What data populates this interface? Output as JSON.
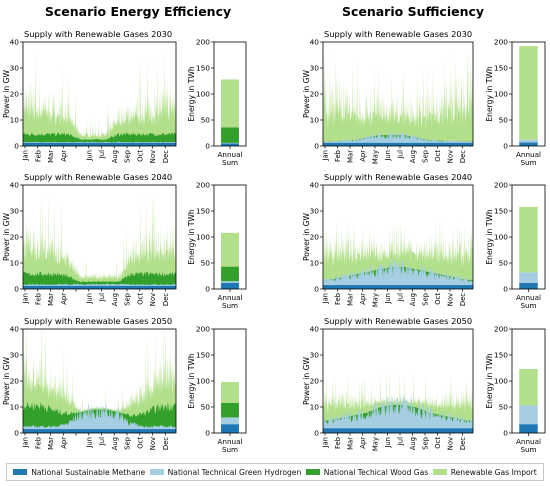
{
  "colors": {
    "methane": "#1f77b4",
    "hydrogen": "#a6cee3",
    "wood": "#33a02c",
    "import": "#b2df8a"
  },
  "scenarios": [
    {
      "title": "Scenario Energy Efficiency",
      "rows": [
        {
          "subtitle": "Supply with Renewable Gases 2030",
          "profile": {
            "methane": 1.2,
            "hydrogen": [
              0.3,
              0.3,
              0.3,
              0.3,
              0.3,
              0.3,
              0.3,
              0.3,
              0.3,
              0.3,
              0.3,
              0.3
            ],
            "wood": [
              3,
              3,
              3,
              3,
              1,
              1,
              1,
              3,
              3,
              3,
              3,
              3
            ],
            "import_mean": [
              17,
              16,
              14,
              12,
              3,
              3,
              3,
              10,
              12,
              14,
              15,
              18
            ],
            "import_peak": [
              31,
              32,
              28,
              26,
              10,
              9,
              10,
              25,
              27,
              29,
              30,
              33
            ]
          },
          "annual_twh": {
            "methane": 5,
            "hydrogen": 1,
            "wood": 30,
            "import": 92
          },
          "total_twh": 128
        },
        {
          "subtitle": "Supply with Renewable Gases 2040",
          "profile": {
            "methane": 1.2,
            "hydrogen": [
              0.5,
              0.5,
              0.5,
              0.6,
              0.6,
              0.6,
              0.6,
              0.6,
              0.5,
              0.5,
              0.5,
              0.5
            ],
            "wood": [
              4,
              4,
              4,
              3,
              1,
              1,
              1,
              1,
              4,
              4,
              4,
              4
            ],
            "import_mean": [
              18,
              16,
              14,
              11,
              3,
              3,
              3,
              3,
              12,
              15,
              17,
              19
            ],
            "import_peak": [
              37,
              33,
              30,
              28,
              9,
              9,
              9,
              9,
              28,
              30,
              32,
              34
            ]
          },
          "annual_twh": {
            "methane": 12,
            "hydrogen": 3,
            "wood": 28,
            "import": 65
          },
          "total_twh": 108
        },
        {
          "subtitle": "Supply with Renewable Gases 2050",
          "profile": {
            "methane": 1.5,
            "hydrogen": [
              1,
              1,
              1,
              2,
              6,
              7,
              7,
              6,
              2,
              1,
              1,
              1
            ],
            "wood": [
              8,
              8,
              6,
              4,
              0.5,
              0.5,
              0.5,
              0.5,
              3,
              5,
              7,
              8
            ],
            "import_mean": [
              20,
              18,
              14,
              10,
              1,
              1,
              1,
              1,
              8,
              12,
              15,
              19
            ],
            "import_peak": [
              36,
              34,
              30,
              22,
              8,
              8,
              8,
              8,
              20,
              30,
              32,
              35
            ]
          },
          "annual_twh": {
            "methane": 17,
            "hydrogen": 13,
            "wood": 28,
            "import": 40
          },
          "total_twh": 98
        }
      ]
    },
    {
      "title": "Scenario Sufficiency",
      "rows": [
        {
          "subtitle": "Supply with Renewable Gases 2030",
          "profile": {
            "methane": 1.2,
            "hydrogen": [
              0.5,
              0.8,
              1,
              2,
              3,
              3,
              3,
              2,
              1,
              0.8,
              0.6,
              0.5
            ],
            "wood": [
              0,
              0,
              0,
              0,
              0,
              0,
              0,
              0,
              0,
              0,
              0,
              0
            ],
            "import_mean": [
              24,
              22,
              19,
              17,
              15,
              14,
              14,
              15,
              17,
              20,
              23,
              25
            ],
            "import_peak": [
              35,
              34,
              30,
              28,
              26,
              25,
              25,
              26,
              29,
              31,
              34,
              36
            ]
          },
          "annual_twh": {
            "methane": 7,
            "hydrogen": 5,
            "wood": 0,
            "import": 180
          },
          "total_twh": 192
        },
        {
          "subtitle": "Supply with Renewable Gases 2040",
          "profile": {
            "methane": 1.5,
            "hydrogen": [
              2,
              3,
              4,
              5,
              6,
              7,
              7,
              6,
              5,
              4,
              3,
              2
            ],
            "wood": [
              0,
              0,
              0,
              0,
              0,
              0,
              0,
              0,
              0,
              0,
              0,
              0
            ],
            "import_mean": [
              18,
              17,
              15,
              13,
              11,
              10,
              10,
              11,
              13,
              15,
              17,
              19
            ],
            "import_peak": [
              23,
              22,
              20,
              19,
              17,
              17,
              17,
              17,
              19,
              21,
              22,
              24
            ]
          },
          "annual_twh": {
            "methane": 12,
            "hydrogen": 20,
            "wood": 0,
            "import": 126
          },
          "total_twh": 158
        },
        {
          "subtitle": "Supply with Renewable Gases 2050",
          "profile": {
            "methane": 1.8,
            "hydrogen": [
              3,
              4,
              5,
              6,
              8,
              9,
              9,
              8,
              6,
              5,
              4,
              3
            ],
            "wood": [
              0,
              0,
              0,
              0,
              0,
              0,
              0,
              0,
              0,
              0,
              0,
              0
            ],
            "import_mean": [
              11,
              10,
              8,
              6,
              4,
              3,
              3,
              4,
              6,
              8,
              10,
              12
            ],
            "import_peak": [
              17,
              16,
              15,
              14,
              13,
              13,
              13,
              13,
              14,
              15,
              16,
              17
            ]
          },
          "annual_twh": {
            "methane": 17,
            "hydrogen": 36,
            "wood": 0,
            "import": 70
          },
          "total_twh": 123
        }
      ]
    }
  ],
  "chart_data": {
    "type": "area",
    "axes": {
      "power_ylabel": "Power in GW",
      "power_ylim": [
        0,
        40
      ],
      "power_yticks": [
        "0",
        "10",
        "20",
        "30",
        "40"
      ],
      "months": [
        "Jan",
        "Feb",
        "Mar",
        "Apr",
        "May",
        "Jun",
        "Jul",
        "Aug",
        "Sep",
        "Oct",
        "Nov",
        "Dec"
      ],
      "month_ticks_shown": [
        "Jan",
        "Feb",
        "Mar",
        "Apr",
        "",
        "Jun",
        "Jul",
        "Aug",
        "Sep",
        "Oct",
        "Nov",
        "Dec"
      ],
      "month_ticks_shown_suff": [
        "Jan",
        "Feb",
        "Mar",
        "Apr",
        "May",
        "Jun",
        "Jul",
        "Aug",
        "Sep",
        "Oct",
        "Nov",
        "Dec"
      ],
      "energy_ylabel": "Energy in TWh",
      "energy_ylim": [
        0,
        200
      ],
      "energy_yticks": [
        "0",
        "50",
        "100",
        "150",
        "200"
      ],
      "energy_xtick": [
        "Annual",
        "Sum"
      ]
    },
    "series": [
      {
        "name": "National Sustainable Methane",
        "color": "#1f77b4"
      },
      {
        "name": "National Technical Green Hydrogen",
        "color": "#a6cee3"
      },
      {
        "name": "National Techical Wood Gas",
        "color": "#33a02c"
      },
      {
        "name": "Renewable Gas Import",
        "color": "#b2df8a"
      }
    ],
    "panels": [
      {
        "scenario": "Scenario Energy Efficiency",
        "year": "2030",
        "annual_twh": {
          "methane": 5,
          "hydrogen": 1,
          "wood": 30,
          "import": 92
        }
      },
      {
        "scenario": "Scenario Energy Efficiency",
        "year": "2040",
        "annual_twh": {
          "methane": 12,
          "hydrogen": 3,
          "wood": 28,
          "import": 65
        }
      },
      {
        "scenario": "Scenario Energy Efficiency",
        "year": "2050",
        "annual_twh": {
          "methane": 17,
          "hydrogen": 13,
          "wood": 28,
          "import": 40
        }
      },
      {
        "scenario": "Scenario Sufficiency",
        "year": "2030",
        "annual_twh": {
          "methane": 7,
          "hydrogen": 5,
          "wood": 0,
          "import": 180
        }
      },
      {
        "scenario": "Scenario Sufficiency",
        "year": "2040",
        "annual_twh": {
          "methane": 12,
          "hydrogen": 20,
          "wood": 0,
          "import": 126
        }
      },
      {
        "scenario": "Scenario Sufficiency",
        "year": "2050",
        "annual_twh": {
          "methane": 17,
          "hydrogen": 36,
          "wood": 0,
          "import": 70
        }
      }
    ]
  },
  "legend": [
    {
      "label": "National Sustainable Methane",
      "color_key": "methane"
    },
    {
      "label": "National Technical Green Hydrogen",
      "color_key": "hydrogen"
    },
    {
      "label": "National Techical Wood Gas",
      "color_key": "wood"
    },
    {
      "label": "Renewable Gas Import",
      "color_key": "import"
    }
  ]
}
